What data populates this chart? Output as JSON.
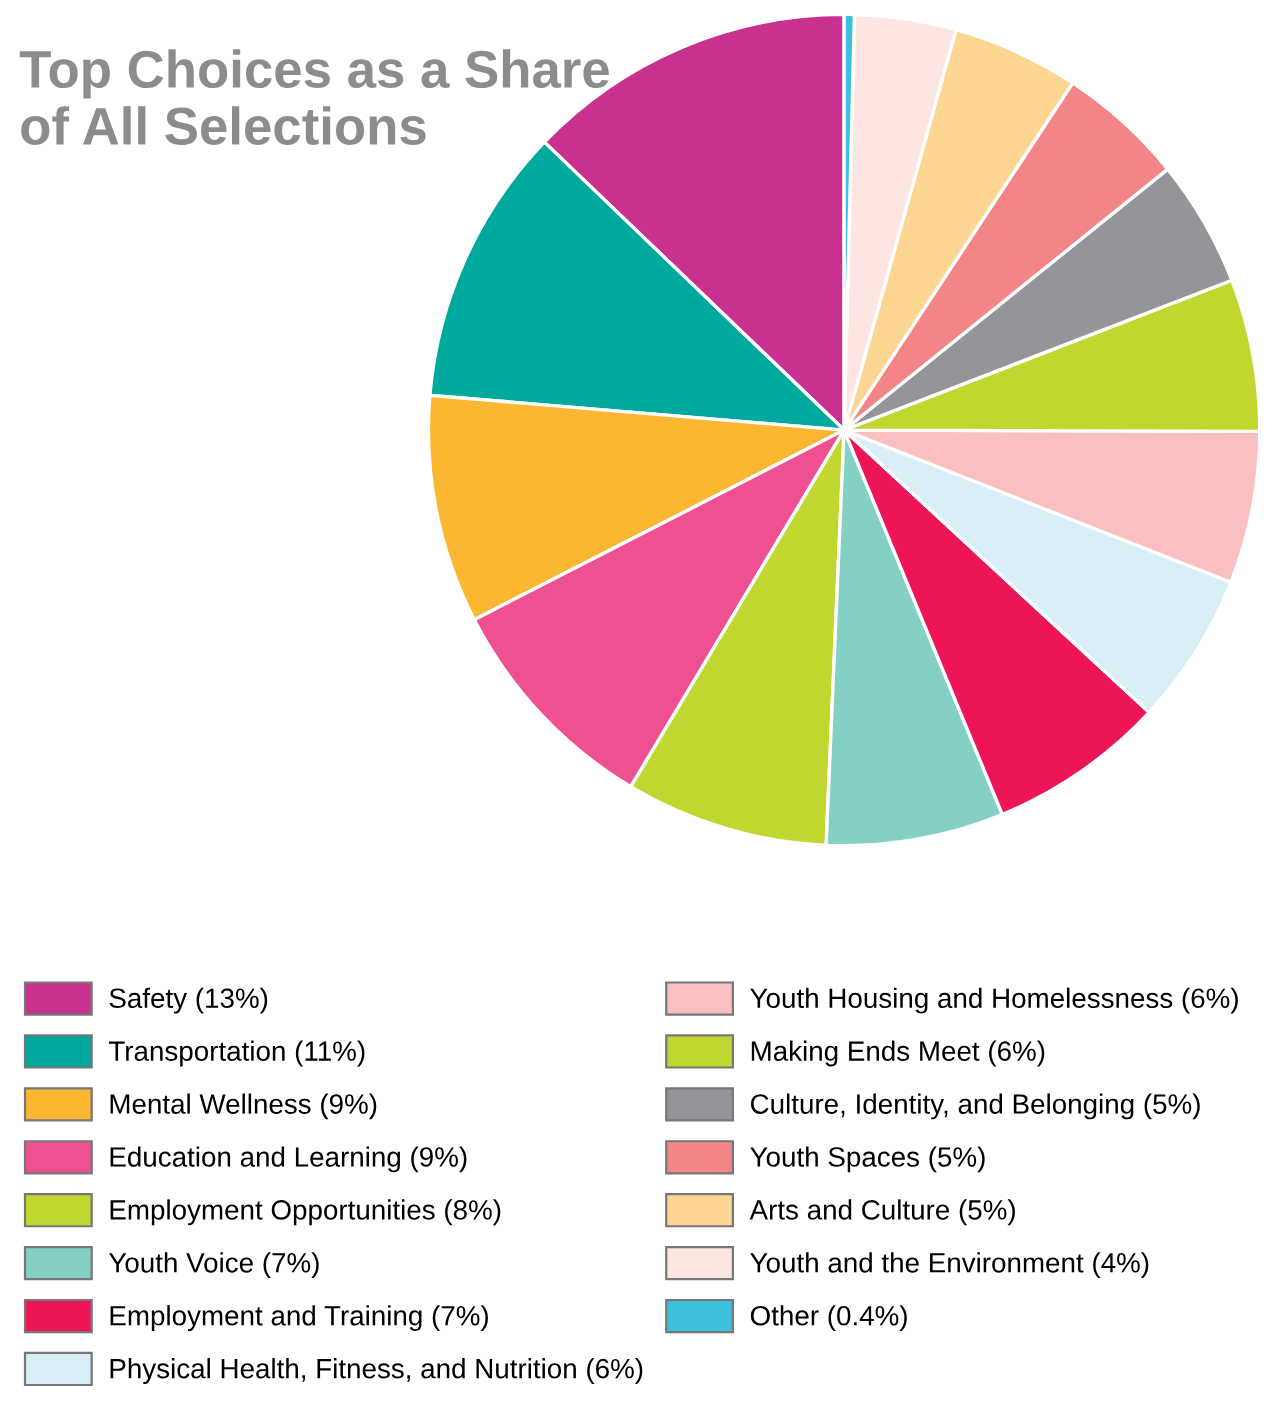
{
  "chart_data": {
    "type": "pie",
    "title": "Top Choices as a Share\nof All Selections",
    "categories": [
      "Safety (13%)",
      "Transportation (11%)",
      "Mental Wellness (9%)",
      "Education and Learning (9%)",
      "Employment Opportunities (8%)",
      "Youth Voice (7%)",
      "Employment and Training (7%)",
      "Physical Health, Fitness, and Nutrition (6%)",
      "Youth Housing and Homelessness (6%)",
      "Making Ends Meet (6%)",
      "Culture, Identity, and Belonging (5%)",
      "Youth Spaces (5%)",
      "Arts and Culture (5%)",
      "Youth and the Environment (4%)",
      "Other (0.4%)"
    ],
    "values": [
      13,
      11,
      9,
      9,
      8,
      7,
      7,
      6,
      6,
      6,
      5,
      5,
      5,
      4,
      0.4
    ],
    "colors": [
      "#c8318f",
      "#00a99d",
      "#fbb731",
      "#ef5091",
      "#c1d72f",
      "#84d0c5",
      "#ed1556",
      "#d9eef6",
      "#f9bfc1",
      "#c1d72f",
      "#939598",
      "#f48587",
      "#fdd692",
      "#fde5e1",
      "#3cc1dc"
    ],
    "legend": "bottom"
  }
}
